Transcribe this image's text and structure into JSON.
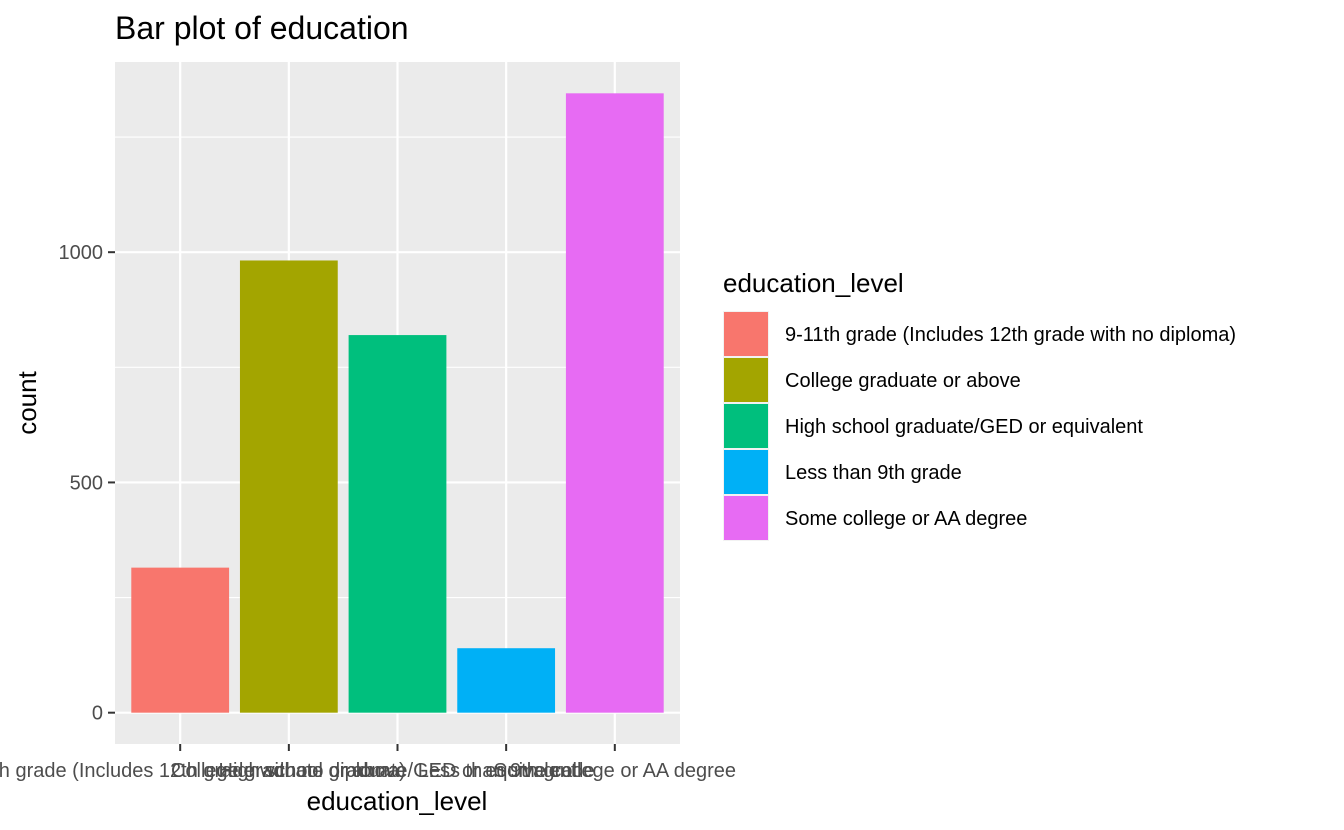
{
  "chart_data": {
    "type": "bar",
    "title": "Bar plot of education",
    "xlabel": "education_level",
    "ylabel": "count",
    "categories": [
      "9-11th grade (Includes 12th grade with no diploma)",
      "College graduate or above",
      "High school graduate/GED or equivalent",
      "Less than 9th grade",
      "Some college or AA degree"
    ],
    "values": [
      315,
      982,
      820,
      140,
      1345
    ],
    "colors": [
      "#F8766D",
      "#A3A500",
      "#00BF7D",
      "#00B0F6",
      "#E76BF3"
    ],
    "yticks": [
      0,
      500,
      1000
    ],
    "ylim": [
      -68,
      1413
    ],
    "grid": true,
    "legend": {
      "title": "education_level",
      "placement": "right",
      "entries": [
        "9-11th grade (Includes 12th grade with no diploma)",
        "College graduate or above",
        "High school graduate/GED or equivalent",
        "Less than 9th grade",
        "Some college or AA degree"
      ]
    }
  }
}
